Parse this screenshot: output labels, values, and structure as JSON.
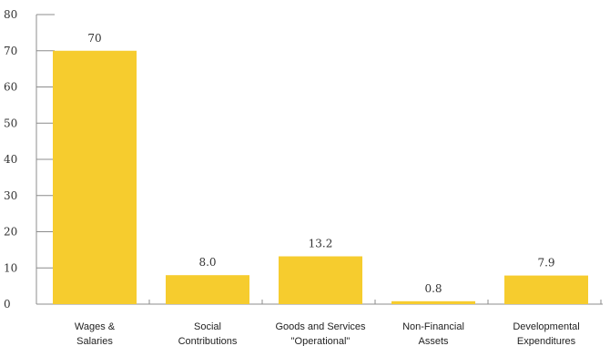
{
  "chart_data": {
    "type": "bar",
    "categories": [
      [
        "Wages &",
        "Salaries"
      ],
      [
        "Social",
        "Contributions"
      ],
      [
        "Goods and Services",
        "\"Operational\""
      ],
      [
        "Non-Financial",
        "Assets"
      ],
      [
        "Developmental",
        "Expenditures"
      ]
    ],
    "values": [
      70,
      8.0,
      13.2,
      0.8,
      7.9
    ],
    "data_labels": [
      "70",
      "8.0",
      "13.2",
      "0.8",
      "7.9"
    ],
    "y_ticks": [
      "0",
      "10",
      "20",
      "30",
      "40",
      "50",
      "60",
      "70",
      "80"
    ],
    "ylim": [
      0,
      80
    ],
    "title": "",
    "xlabel": "",
    "ylabel": "",
    "grid": false,
    "legend": "none",
    "bar_color": "#F6CC2E",
    "axis_color": "#8C8C8C"
  }
}
